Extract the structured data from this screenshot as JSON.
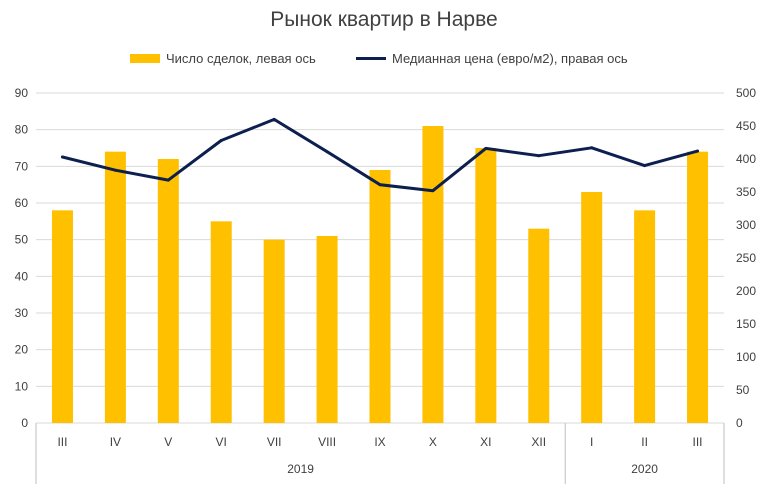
{
  "chart_data": {
    "type": "bar",
    "title": "Рынок квартир в Нарве",
    "categories": [
      "III",
      "IV",
      "V",
      "VI",
      "VII",
      "VIII",
      "IX",
      "X",
      "XI",
      "XII",
      "I",
      "II",
      "III"
    ],
    "groups": [
      {
        "label": "2019",
        "count": 10
      },
      {
        "label": "2020",
        "count": 3
      }
    ],
    "series": [
      {
        "name": "Число сделок, левая ось",
        "type": "bar",
        "axis": "left",
        "color": "#FFC000",
        "values": [
          58,
          74,
          72,
          55,
          50,
          51,
          69,
          81,
          75,
          53,
          63,
          58,
          74
        ]
      },
      {
        "name": "Медианная цена (евро/м2), правая ось",
        "type": "line",
        "axis": "right",
        "color": "#0D1F4F",
        "values": [
          403,
          383,
          368,
          428,
          460,
          411,
          361,
          352,
          416,
          405,
          417,
          390,
          412
        ]
      }
    ],
    "y_left": {
      "min": 0,
      "max": 90,
      "step": 10,
      "ticks": [
        "0",
        "10",
        "20",
        "30",
        "40",
        "50",
        "60",
        "70",
        "80",
        "90"
      ]
    },
    "y_right": {
      "min": 0,
      "max": 500,
      "step": 50,
      "ticks": [
        "0",
        "50",
        "100",
        "150",
        "200",
        "250",
        "300",
        "350",
        "400",
        "450",
        "500"
      ]
    },
    "grid": true,
    "legend_position": "top"
  }
}
